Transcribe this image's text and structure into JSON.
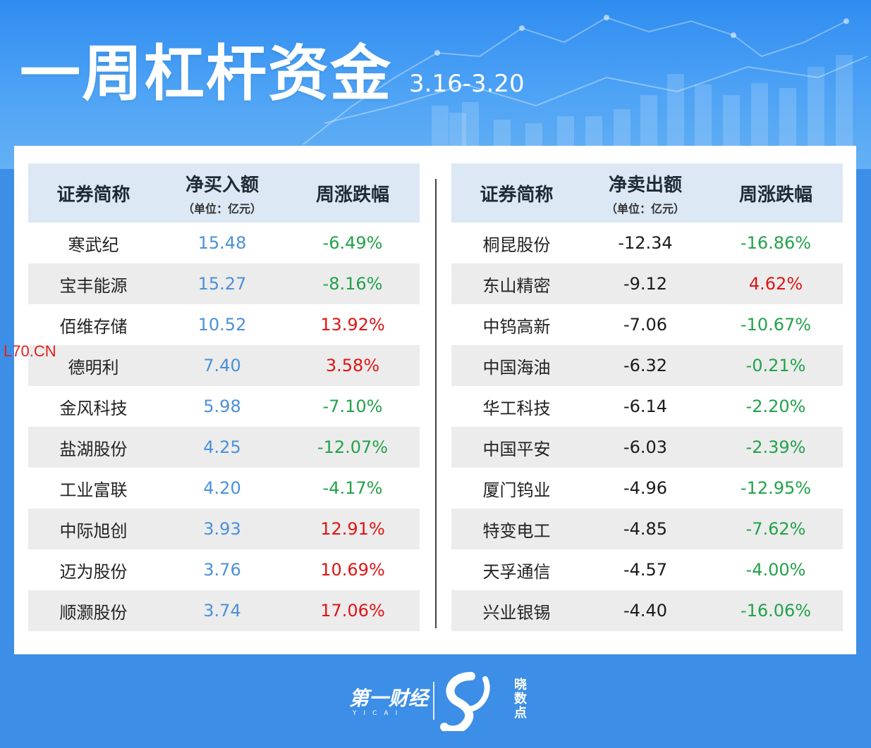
{
  "header": {
    "title": "一周杠杆资金",
    "date_range": "3.16-3.20"
  },
  "watermark": "L70.CN",
  "left_table": {
    "headers": {
      "name": "证券简称",
      "amount": "净买入额",
      "amount_unit": "（单位：亿元）",
      "change": "周涨跌幅"
    },
    "rows": [
      {
        "name": "寒武纪",
        "amount": "15.48",
        "change": "-6.49%"
      },
      {
        "name": "宝丰能源",
        "amount": "15.27",
        "change": "-8.16%"
      },
      {
        "name": "佰维存储",
        "amount": "10.52",
        "change": "13.92%"
      },
      {
        "name": "德明利",
        "amount": "7.40",
        "change": "3.58%"
      },
      {
        "name": "金风科技",
        "amount": "5.98",
        "change": "-7.10%"
      },
      {
        "name": "盐湖股份",
        "amount": "4.25",
        "change": "-12.07%"
      },
      {
        "name": "工业富联",
        "amount": "4.20",
        "change": "-4.17%"
      },
      {
        "name": "中际旭创",
        "amount": "3.93",
        "change": "12.91%"
      },
      {
        "name": "迈为股份",
        "amount": "3.76",
        "change": "10.69%"
      },
      {
        "name": "顺灏股份",
        "amount": "3.74",
        "change": "17.06%"
      }
    ]
  },
  "right_table": {
    "headers": {
      "name": "证券简称",
      "amount": "净卖出额",
      "amount_unit": "（单位：亿元）",
      "change": "周涨跌幅"
    },
    "rows": [
      {
        "name": "桐昆股份",
        "amount": "-12.34",
        "change": "-16.86%"
      },
      {
        "name": "东山精密",
        "amount": "-9.12",
        "change": "4.62%"
      },
      {
        "name": "中钨高新",
        "amount": "-7.06",
        "change": "-10.67%"
      },
      {
        "name": "中国海油",
        "amount": "-6.32",
        "change": "-0.21%"
      },
      {
        "name": "华工科技",
        "amount": "-6.14",
        "change": "-2.20%"
      },
      {
        "name": "中国平安",
        "amount": "-6.03",
        "change": "-2.39%"
      },
      {
        "name": "厦门钨业",
        "amount": "-4.96",
        "change": "-12.95%"
      },
      {
        "name": "特变电工",
        "amount": "-4.85",
        "change": "-7.62%"
      },
      {
        "name": "天孚通信",
        "amount": "-4.57",
        "change": "-4.00%"
      },
      {
        "name": "兴业银锡",
        "amount": "-4.40",
        "change": "-16.06%"
      }
    ]
  },
  "footer": {
    "brand": "第一财经",
    "brand_sub": "YICAI",
    "product": "晓数点"
  },
  "colors": {
    "up": "#e01414",
    "down": "#22a24a",
    "buy_value": "#4a90d9",
    "header_bg": "#dce8f4",
    "background": "#3d8ee6"
  }
}
